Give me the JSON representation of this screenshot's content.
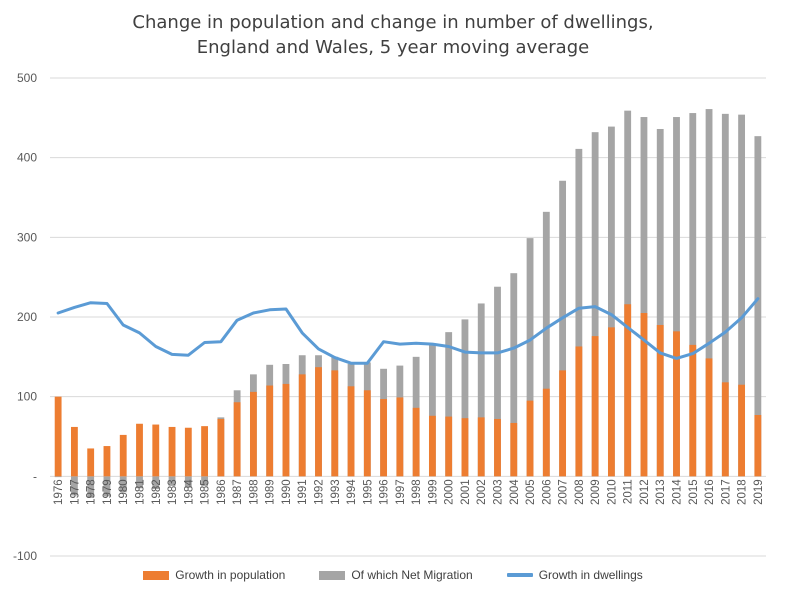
{
  "chart_data": {
    "type": "bar",
    "title_lines": [
      "Change in population and change in number of dwellings,",
      "England and Wales, 5 year moving average"
    ],
    "categories": [
      "1976",
      "1977",
      "1978",
      "1979",
      "1980",
      "1981",
      "1982",
      "1983",
      "1984",
      "1985",
      "1986",
      "1987",
      "1988",
      "1989",
      "1990",
      "1991",
      "1992",
      "1993",
      "1994",
      "1995",
      "1996",
      "1997",
      "1998",
      "1999",
      "2000",
      "2001",
      "2002",
      "2003",
      "2004",
      "2005",
      "2006",
      "2007",
      "2008",
      "2009",
      "2010",
      "2011",
      "2012",
      "2013",
      "2014",
      "2015",
      "2016",
      "2017",
      "2018",
      "2019"
    ],
    "ylim": [
      -100,
      500
    ],
    "yticks": [
      -100,
      0,
      100,
      200,
      300,
      400,
      500
    ],
    "ytick_labels": [
      "-100",
      "-",
      "100",
      "200",
      "300",
      "400",
      "500"
    ],
    "grid": true,
    "legend_position": "bottom",
    "series": [
      {
        "name": "Growth in population",
        "type": "bar",
        "color": "#ED7D31",
        "values": [
          100,
          62,
          35,
          38,
          52,
          66,
          65,
          62,
          61,
          63,
          72,
          93,
          106,
          114,
          116,
          128,
          137,
          133,
          113,
          108,
          97,
          99,
          86,
          76,
          75,
          73,
          74,
          72,
          67,
          95,
          110,
          133,
          163,
          176,
          187,
          216,
          205,
          190,
          182,
          165,
          148,
          118,
          115,
          77
        ]
      },
      {
        "name": "Of which Net Migration",
        "type": "bar",
        "color": "#A5A5A5",
        "values": [
          -1,
          -24,
          -27,
          -25,
          -20,
          -15,
          -16,
          -12,
          -14,
          -12,
          74,
          108,
          128,
          140,
          141,
          152,
          152,
          150,
          141,
          143,
          135,
          139,
          150,
          166,
          181,
          197,
          217,
          238,
          255,
          299,
          332,
          371,
          411,
          432,
          439,
          459,
          451,
          436,
          451,
          456,
          461,
          455,
          454,
          427
        ]
      },
      {
        "name": "Growth in dwellings",
        "type": "line",
        "color": "#5B9BD5",
        "values": [
          205,
          212,
          218,
          217,
          190,
          180,
          163,
          153,
          152,
          168,
          169,
          196,
          205,
          209,
          210,
          180,
          160,
          149,
          142,
          142,
          169,
          166,
          167,
          166,
          163,
          156,
          155,
          155,
          161,
          171,
          186,
          199,
          211,
          213,
          203,
          187,
          171,
          155,
          148,
          154,
          167,
          181,
          199,
          223
        ]
      }
    ]
  }
}
